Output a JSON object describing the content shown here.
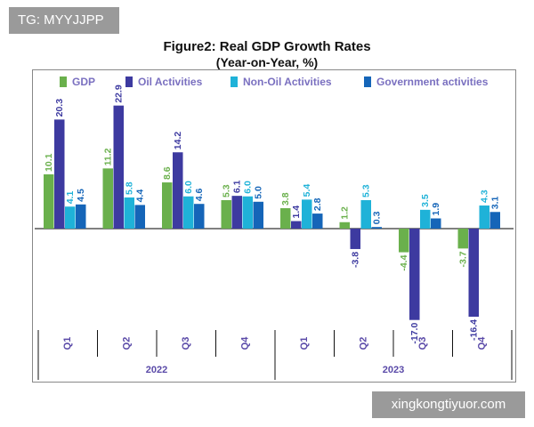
{
  "tag_text": "TG: MYYJJPP",
  "watermark_text": "xingkongtiyuor.com",
  "colors": {
    "gdp": "#6ab04c",
    "oil": "#3d3aa0",
    "nonoil": "#1fb2d8",
    "gov": "#1565b8",
    "year_label": "#5a4aa8",
    "axis": "#000000"
  },
  "chart_data": {
    "type": "bar",
    "title": "Figure2: Real GDP Growth Rates",
    "subtitle": "(Year-on-Year, %)",
    "categories": [
      "Q1",
      "Q2",
      "Q3",
      "Q4",
      "Q1",
      "Q2",
      "Q3",
      "Q4"
    ],
    "groups": [
      {
        "label": "2022",
        "start": 0,
        "end": 3
      },
      {
        "label": "2023",
        "start": 4,
        "end": 7
      }
    ],
    "series": [
      {
        "name": "GDP",
        "values": [
          10.1,
          11.2,
          8.6,
          5.3,
          3.8,
          1.2,
          -4.4,
          -3.7
        ]
      },
      {
        "name": "Oil Activities",
        "values": [
          20.3,
          22.9,
          14.2,
          6.1,
          1.4,
          -3.8,
          -17.0,
          -16.4
        ]
      },
      {
        "name": "Non-Oil Activities",
        "values": [
          4.1,
          5.8,
          6.0,
          6.0,
          5.4,
          5.3,
          3.5,
          4.3
        ]
      },
      {
        "name": "Government activities",
        "values": [
          4.5,
          4.4,
          4.6,
          5.0,
          2.8,
          0.3,
          1.9,
          3.1
        ]
      }
    ],
    "labels": [
      [
        "10.1",
        "11.2",
        "8.6",
        "5.3",
        "3.8",
        "1.2",
        "-4.4",
        "-3.7"
      ],
      [
        "20.3",
        "22.9",
        "14.2",
        "6.1",
        "1.4",
        "-3.8",
        "-17.0",
        "-16.4"
      ],
      [
        "4.1",
        "5.8",
        "6.0",
        "6.0",
        "5.4",
        "5.3",
        "3.5",
        "4.3"
      ],
      [
        "4.5",
        "4.4",
        "4.6",
        "5.0",
        "2.8",
        "0.3",
        "1.9",
        "3.1"
      ]
    ],
    "ylim": [
      -17.5,
      24.5
    ],
    "legend": "top",
    "grid": false
  }
}
